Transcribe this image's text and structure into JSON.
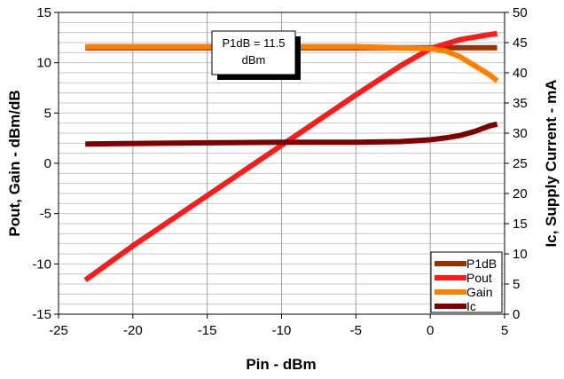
{
  "chart_data": {
    "type": "line",
    "xlabel": "Pin - dBm",
    "ylabel": "Pout, Gain - dBm/dB",
    "y2label": "Ic, Supply Current - mA",
    "xlim": [
      -25,
      5
    ],
    "ylim": [
      -15,
      15
    ],
    "y2lim": [
      0,
      50
    ],
    "x_ticks": [
      -25,
      -20,
      -15,
      -10,
      -5,
      0,
      5
    ],
    "y_ticks": [
      -15,
      -10,
      -5,
      0,
      5,
      10,
      15
    ],
    "y2_ticks": [
      0,
      5,
      10,
      15,
      20,
      25,
      30,
      35,
      40,
      45,
      50
    ],
    "grid": true,
    "legend_position": "bottom-right",
    "annotation": {
      "line1": "P1dB = 11.5",
      "line2": "dBm"
    },
    "series": [
      {
        "name": "P1dB",
        "axis": "left",
        "color": "#993300",
        "x": [
          -23.2,
          4.5
        ],
        "y": [
          11.5,
          11.5
        ]
      },
      {
        "name": "Pout",
        "axis": "left",
        "color": "#ff1a1a",
        "x": [
          -23.2,
          -20,
          -15,
          -10,
          -5,
          -2,
          0,
          2,
          4,
          4.5
        ],
        "y": [
          -11.6,
          -8.2,
          -3.2,
          1.8,
          6.8,
          9.7,
          11.4,
          12.3,
          12.8,
          12.9
        ]
      },
      {
        "name": "Gain",
        "axis": "left",
        "color": "#ff8000",
        "x": [
          -23.2,
          -15,
          -10,
          -5,
          -2,
          0,
          1,
          2,
          3,
          4,
          4.5
        ],
        "y": [
          11.6,
          11.6,
          11.6,
          11.6,
          11.5,
          11.4,
          11.2,
          10.6,
          9.7,
          8.8,
          8.2
        ]
      },
      {
        "name": "Ic",
        "axis": "right",
        "color": "#800000",
        "x": [
          -23.2,
          -15,
          -10,
          -5,
          -2,
          0,
          1,
          2,
          3,
          4,
          4.5
        ],
        "y": [
          28.2,
          28.4,
          28.5,
          28.5,
          28.6,
          28.9,
          29.2,
          29.6,
          30.3,
          31.2,
          31.5
        ]
      }
    ]
  }
}
